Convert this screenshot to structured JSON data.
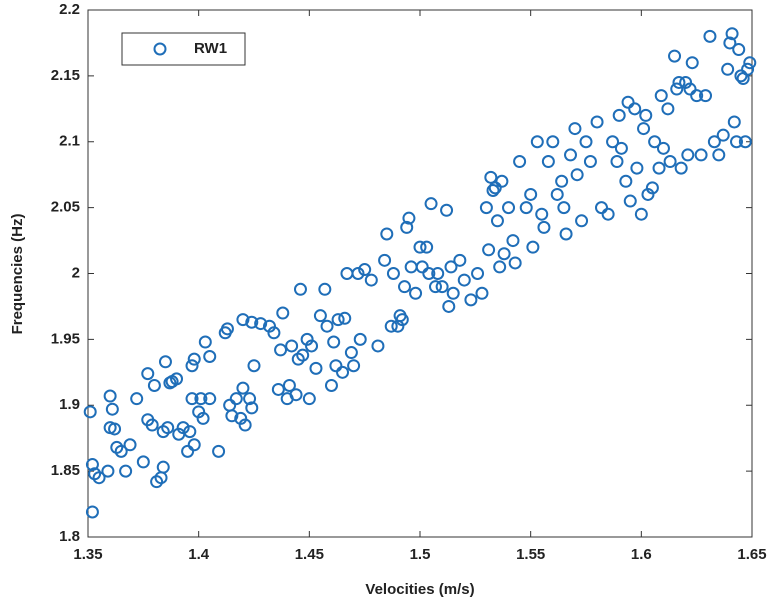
{
  "chart_data": {
    "type": "scatter",
    "xlabel": "Velocities (m/s)",
    "ylabel": "Frequencies (Hz)",
    "xlim": [
      1.35,
      1.65
    ],
    "xticks": [
      1.35,
      1.4,
      1.45,
      1.5,
      1.55,
      1.6,
      1.65
    ],
    "ylim": [
      1.8,
      2.2
    ],
    "yticks": [
      1.8,
      1.85,
      1.9,
      1.95,
      2,
      2.05,
      2.1,
      2.15,
      2.2
    ],
    "grid": false,
    "legend": "upper left",
    "x": [
      1.351,
      1.352,
      1.352,
      1.353,
      1.355,
      1.359,
      1.36,
      1.36,
      1.362,
      1.361,
      1.363,
      1.365,
      1.367,
      1.369,
      1.372,
      1.375,
      1.377,
      1.377,
      1.379,
      1.38,
      1.381,
      1.383,
      1.384,
      1.384,
      1.385,
      1.386,
      1.387,
      1.388,
      1.39,
      1.391,
      1.393,
      1.395,
      1.396,
      1.397,
      1.397,
      1.398,
      1.398,
      1.4,
      1.401,
      1.402,
      1.403,
      1.405,
      1.405,
      1.409,
      1.412,
      1.413,
      1.414,
      1.415,
      1.417,
      1.419,
      1.42,
      1.42,
      1.421,
      1.423,
      1.424,
      1.424,
      1.425,
      1.428,
      1.432,
      1.434,
      1.436,
      1.437,
      1.438,
      1.44,
      1.441,
      1.442,
      1.444,
      1.445,
      1.446,
      1.447,
      1.449,
      1.45,
      1.451,
      1.453,
      1.455,
      1.457,
      1.458,
      1.46,
      1.461,
      1.462,
      1.463,
      1.465,
      1.466,
      1.467,
      1.469,
      1.47,
      1.472,
      1.473,
      1.475,
      1.478,
      1.481,
      1.484,
      1.485,
      1.487,
      1.488,
      1.49,
      1.491,
      1.492,
      1.493,
      1.494,
      1.495,
      1.496,
      1.498,
      1.5,
      1.501,
      1.503,
      1.504,
      1.505,
      1.507,
      1.508,
      1.51,
      1.512,
      1.513,
      1.514,
      1.515,
      1.518,
      1.52,
      1.523,
      1.526,
      1.528,
      1.53,
      1.531,
      1.532,
      1.533,
      1.534,
      1.535,
      1.536,
      1.537,
      1.538,
      1.54,
      1.542,
      1.543,
      1.545,
      1.548,
      1.55,
      1.551,
      1.553,
      1.555,
      1.556,
      1.558,
      1.56,
      1.562,
      1.564,
      1.565,
      1.566,
      1.568,
      1.57,
      1.571,
      1.573,
      1.575,
      1.577,
      1.58,
      1.582,
      1.585,
      1.587,
      1.589,
      1.59,
      1.591,
      1.593,
      1.594,
      1.595,
      1.597,
      1.598,
      1.6,
      1.601,
      1.602,
      1.603,
      1.605,
      1.606,
      1.608,
      1.609,
      1.61,
      1.612,
      1.613,
      1.615,
      1.616,
      1.617,
      1.618,
      1.62,
      1.621,
      1.622,
      1.623,
      1.625,
      1.627,
      1.629,
      1.631,
      1.633,
      1.635,
      1.637,
      1.639,
      1.64,
      1.641,
      1.642,
      1.643,
      1.644,
      1.645,
      1.646,
      1.647,
      1.648,
      1.649
    ],
    "series": [
      {
        "name": "RW1",
        "color": "#1f6eb8",
        "values": [
          1.895,
          1.819,
          1.855,
          1.848,
          1.845,
          1.85,
          1.907,
          1.883,
          1.882,
          1.897,
          1.868,
          1.865,
          1.85,
          1.87,
          1.905,
          1.857,
          1.924,
          1.889,
          1.885,
          1.915,
          1.842,
          1.845,
          1.853,
          1.88,
          1.933,
          1.883,
          1.917,
          1.918,
          1.92,
          1.878,
          1.883,
          1.865,
          1.88,
          1.905,
          1.93,
          1.935,
          1.87,
          1.895,
          1.905,
          1.89,
          1.948,
          1.905,
          1.937,
          1.865,
          1.955,
          1.958,
          1.9,
          1.892,
          1.905,
          1.89,
          1.965,
          1.913,
          1.885,
          1.905,
          1.963,
          1.898,
          1.93,
          1.962,
          1.96,
          1.955,
          1.912,
          1.942,
          1.97,
          1.905,
          1.915,
          1.945,
          1.908,
          1.935,
          1.988,
          1.938,
          1.95,
          1.905,
          1.945,
          1.928,
          1.968,
          1.988,
          1.96,
          1.915,
          1.948,
          1.93,
          1.965,
          1.925,
          1.966,
          2.0,
          1.94,
          1.93,
          2.0,
          1.95,
          2.003,
          1.995,
          1.945,
          2.01,
          2.03,
          1.96,
          2.0,
          1.96,
          1.968,
          1.965,
          1.99,
          2.035,
          2.042,
          2.005,
          1.985,
          2.02,
          2.005,
          2.02,
          2.0,
          2.053,
          1.99,
          2.0,
          1.99,
          2.048,
          1.975,
          2.005,
          1.985,
          2.01,
          1.995,
          1.98,
          2.0,
          1.985,
          2.05,
          2.018,
          2.073,
          2.063,
          2.065,
          2.04,
          2.005,
          2.07,
          2.015,
          2.05,
          2.025,
          2.008,
          2.085,
          2.05,
          2.06,
          2.02,
          2.1,
          2.045,
          2.035,
          2.085,
          2.1,
          2.06,
          2.07,
          2.05,
          2.03,
          2.09,
          2.11,
          2.075,
          2.04,
          2.1,
          2.085,
          2.115,
          2.05,
          2.045,
          2.1,
          2.085,
          2.12,
          2.095,
          2.07,
          2.13,
          2.055,
          2.125,
          2.08,
          2.045,
          2.11,
          2.12,
          2.06,
          2.065,
          2.1,
          2.08,
          2.135,
          2.095,
          2.125,
          2.085,
          2.165,
          2.14,
          2.145,
          2.08,
          2.145,
          2.09,
          2.14,
          2.16,
          2.135,
          2.09,
          2.135,
          2.18,
          2.1,
          2.09,
          2.105,
          2.155,
          2.175,
          2.182,
          2.115,
          2.1,
          2.17,
          2.15,
          2.148,
          2.1,
          2.155,
          2.16
        ]
      }
    ]
  }
}
